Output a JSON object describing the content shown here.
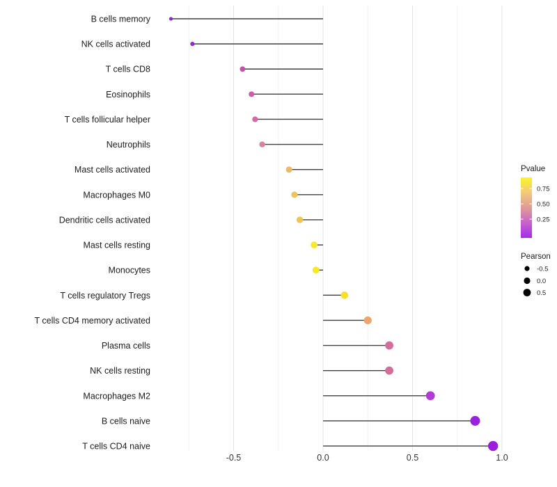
{
  "chart_data": {
    "type": "scatter",
    "variant": "lollipop",
    "title": "",
    "xlabel": "",
    "ylabel": "",
    "xlim": [
      -0.95,
      1.05
    ],
    "xticks": [
      -0.5,
      0.0,
      0.5,
      1.0
    ],
    "xtick_labels": [
      "-0.5",
      "0.0",
      "0.5",
      "1.0"
    ],
    "minor_gridlines": [
      -0.75,
      -0.25,
      0.25,
      0.75
    ],
    "grid": "vertical only, light gray, white panel background",
    "baseline_x": 0.0,
    "stick_color": "#3f3f3f",
    "categories": [
      "B cells memory",
      "NK cells activated",
      "T cells CD8",
      "Eosinophils",
      "T cells follicular helper",
      "Neutrophils",
      "Mast cells activated",
      "Macrophages M0",
      "Dendritic cells activated",
      "Mast cells resting",
      "Monocytes",
      "T cells regulatory  Tregs",
      "T cells CD4 memory activated",
      "Plasma cells",
      "NK cells resting",
      "Macrophages M2",
      "B cells naive",
      "T cells CD4 naive"
    ],
    "series": [
      {
        "name": "Pearson",
        "values": [
          -0.85,
          -0.73,
          -0.45,
          -0.4,
          -0.38,
          -0.34,
          -0.19,
          -0.16,
          -0.13,
          -0.05,
          -0.04,
          0.12,
          0.25,
          0.37,
          0.37,
          0.6,
          0.85,
          0.95
        ]
      }
    ],
    "point_colors": [
      "#8a2bd0",
      "#8d2ad0",
      "#c351a8",
      "#cb5fa5",
      "#d06da4",
      "#d8849b",
      "#eaba68",
      "#eec25f",
      "#efc556",
      "#f7e829",
      "#f7e829",
      "#f6e02e",
      "#eda56f",
      "#d36d9a",
      "#d36d9a",
      "#b13bd6",
      "#9a22dd",
      "#9a1fdd"
    ],
    "point_radii": [
      2.6,
      3.1,
      3.9,
      4.0,
      4.1,
      4.2,
      4.5,
      4.6,
      4.7,
      4.9,
      4.9,
      5.3,
      5.6,
      5.9,
      5.9,
      6.4,
      7.0,
      7.2
    ],
    "legend_position": "right",
    "legend_color": {
      "title": "Pvalue",
      "tick_labels": [
        "0.75",
        "0.50",
        "0.25"
      ],
      "gradient_top_to_bottom": [
        "#fbf524",
        "#f2c97b",
        "#e09b96",
        "#c763cd",
        "#a42ce8"
      ]
    },
    "legend_size": {
      "title": "Pearson",
      "items": [
        {
          "label": "-0.5",
          "radius": 3.6
        },
        {
          "label": "0.0",
          "radius": 4.6
        },
        {
          "label": "0.5",
          "radius": 5.4
        }
      ],
      "dot_color": "#000000"
    }
  }
}
